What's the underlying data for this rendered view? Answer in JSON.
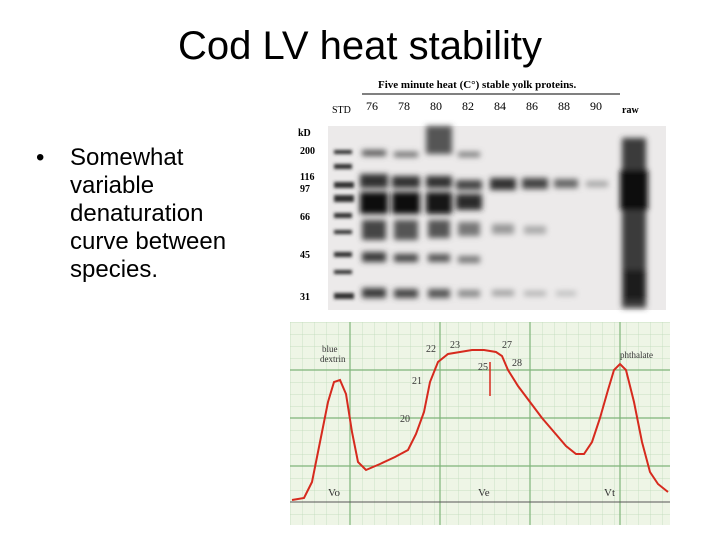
{
  "slide": {
    "title": "Cod LV heat stability",
    "bullets": [
      {
        "text": "Somewhat variable denaturation curve between species."
      }
    ]
  },
  "gel": {
    "heading": "Five minute heat (C°) stable yolk proteins.",
    "std_label": "STD",
    "raw_label": "raw",
    "kd_label": "kD",
    "temperatures": [
      "76",
      "78",
      "80",
      "82",
      "84",
      "86",
      "88",
      "90"
    ],
    "markers": [
      "200",
      "116",
      "97",
      "66",
      "45",
      "31"
    ]
  },
  "chromatogram": {
    "labels": {
      "blue_dextrin": [
        "blue",
        "dextrin"
      ],
      "phthalate": "phthalate",
      "vo": "Vo",
      "ve": "Ve",
      "vt": "Vt"
    },
    "fractions": [
      "20",
      "21",
      "22",
      "23",
      "25",
      "27",
      "28"
    ]
  },
  "colors": {
    "trace": "#d62a1e",
    "grid": "#9ec79a",
    "paper": "#eef5e6"
  }
}
